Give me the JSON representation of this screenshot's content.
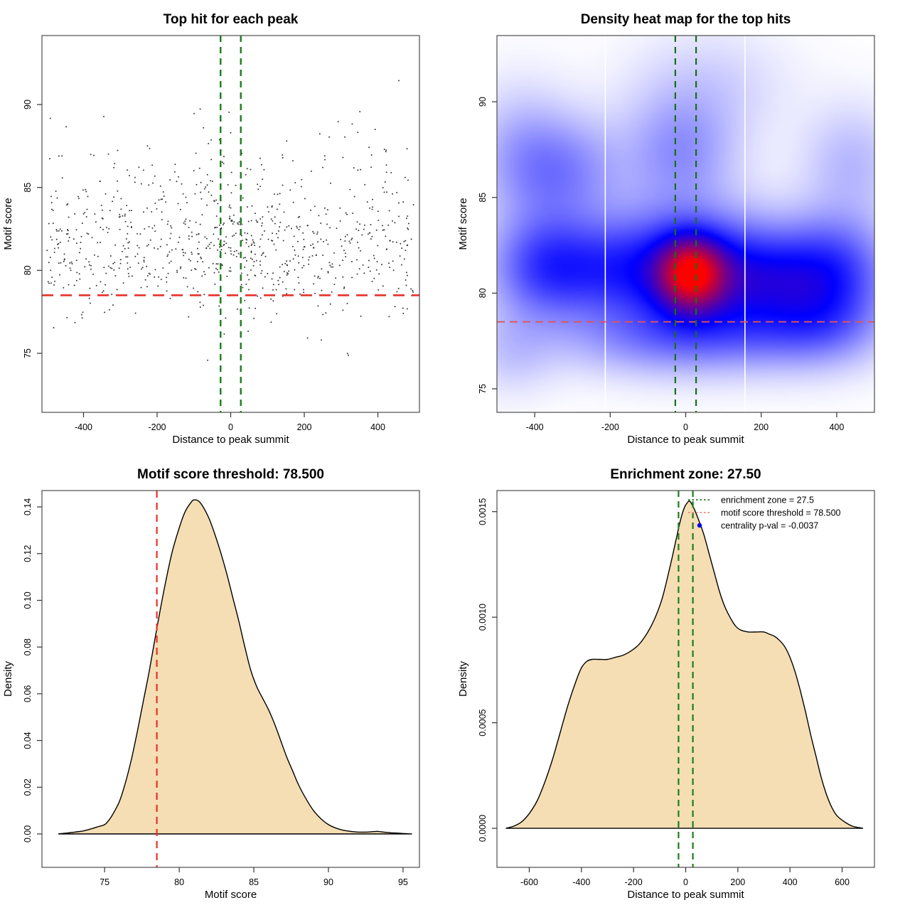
{
  "page": {
    "background": "#FFFFFF",
    "box_color": "#4d4d4d",
    "tick_color": "#333333"
  },
  "chart_data": [
    {
      "id": "p1",
      "type": "scatter",
      "title": "Top hit for each peak",
      "xlabel": "Distance to peak summit",
      "ylabel": "Motif score",
      "xlim": [
        -513,
        513
      ],
      "ylim": [
        71.44,
        94.16
      ],
      "xticks": [
        -400,
        -200,
        0,
        200,
        400
      ],
      "xtick_labels": [
        "-400",
        "-200",
        "0",
        "200",
        "400"
      ],
      "yticks": [
        75,
        80,
        85,
        90
      ],
      "ytick_labels": [
        "75",
        "80",
        "85",
        "90"
      ],
      "point_color": "#1c1c1c",
      "threshold_line": {
        "y": 78.5,
        "color": "#E8312A",
        "dash": "16,10",
        "width": 2.6
      },
      "zone_lines": {
        "x": [
          -27.5,
          27.5
        ],
        "color": "#1B7E1B",
        "dash": "9,7",
        "width": 2.4
      },
      "points_spec": {
        "seed": 987654321,
        "n_background": 730,
        "n_center": 145,
        "x_range": [
          -500,
          500
        ],
        "center_x_mean": 15,
        "center_x_sd": 95,
        "y_main_mean": 81.1,
        "y_main_sd": 2.0,
        "y_tail_mean": 84.3,
        "y_tail_sd": 2.6,
        "tail_fraction": 0.28,
        "y_range": [
          73.6,
          93.8
        ]
      }
    },
    {
      "id": "p2",
      "type": "heatmap",
      "title": "Density heat map for the top hits",
      "xlabel": "Distance to peak summit",
      "ylabel": "Motif score",
      "xlim": [
        -500,
        500
      ],
      "ylim": [
        73.77,
        93.46
      ],
      "xticks": [
        -400,
        -200,
        0,
        200,
        400
      ],
      "xtick_labels": [
        "-400",
        "-200",
        "0",
        "200",
        "400"
      ],
      "yticks": [
        75,
        80,
        85,
        90
      ],
      "ytick_labels": [
        "75",
        "80",
        "85",
        "90"
      ],
      "colormap": [
        "#FFFFFF",
        "#0000FF",
        "#FF0000"
      ],
      "white_gridlines_x": [
        -213,
        157
      ],
      "threshold_line": {
        "y": 78.5,
        "color": "#E05555",
        "dash": "11,7",
        "width": 1.8
      },
      "zone_lines": {
        "x": [
          -27.5,
          27.5
        ],
        "color": "#157015",
        "dash": "9,7",
        "width": 2.2
      },
      "kernels": [
        {
          "x": 15,
          "y": 81.0,
          "sx": 60,
          "sy": 1.3,
          "w": 1.0
        },
        {
          "x": 0,
          "y": 81.3,
          "sx": 150,
          "sy": 2.2,
          "w": 0.6
        },
        {
          "x": 230,
          "y": 80.8,
          "sx": 140,
          "sy": 1.7,
          "w": 0.52
        },
        {
          "x": 400,
          "y": 81.3,
          "sx": 100,
          "sy": 2.0,
          "w": 0.38
        },
        {
          "x": -370,
          "y": 81.4,
          "sx": 100,
          "sy": 1.9,
          "w": 0.52
        },
        {
          "x": -190,
          "y": 81.2,
          "sx": 110,
          "sy": 1.7,
          "w": 0.3
        },
        {
          "x": -330,
          "y": 86.4,
          "sx": 110,
          "sy": 1.9,
          "w": 0.3
        },
        {
          "x": -15,
          "y": 87.4,
          "sx": 100,
          "sy": 2.0,
          "w": 0.26
        },
        {
          "x": 140,
          "y": 77.9,
          "sx": 180,
          "sy": 1.4,
          "w": 0.26
        },
        {
          "x": 360,
          "y": 78.4,
          "sx": 110,
          "sy": 1.5,
          "w": 0.26
        },
        {
          "x": -120,
          "y": 77.6,
          "sx": 170,
          "sy": 1.3,
          "w": 0.18
        },
        {
          "x": -440,
          "y": 87.6,
          "sx": 90,
          "sy": 2.3,
          "w": 0.14
        },
        {
          "x": 60,
          "y": 90.8,
          "sx": 140,
          "sy": 2.0,
          "w": 0.1
        },
        {
          "x": 440,
          "y": 86.8,
          "sx": 90,
          "sy": 2.0,
          "w": 0.16
        },
        {
          "x": -460,
          "y": 77.0,
          "sx": 80,
          "sy": 1.5,
          "w": 0.12
        }
      ]
    },
    {
      "id": "p3",
      "type": "area",
      "title": "Motif score threshold: 78.500",
      "xlabel": "Motif score",
      "ylabel": "Density",
      "xlim": [
        70.8,
        96.1
      ],
      "ylim": [
        -0.0143,
        0.147
      ],
      "xticks": [
        75,
        80,
        85,
        90,
        95
      ],
      "xtick_labels": [
        "75",
        "80",
        "85",
        "90",
        "95"
      ],
      "yticks": [
        0.0,
        0.02,
        0.04,
        0.06,
        0.08,
        0.1,
        0.12,
        0.14
      ],
      "ytick_labels": [
        "0.00",
        "0.02",
        "0.04",
        "0.06",
        "0.08",
        "0.10",
        "0.12",
        "0.14"
      ],
      "fill": "#F5DEB3",
      "outline": "#000000",
      "threshold_line": {
        "x": 78.5,
        "color": "#E8312A",
        "dash": "10,7",
        "width": 2.2
      },
      "curve": [
        [
          71.9,
          0
        ],
        [
          72.5,
          0.0004
        ],
        [
          73,
          0.0008
        ],
        [
          73.5,
          0.0012
        ],
        [
          74,
          0.002
        ],
        [
          74.5,
          0.003
        ],
        [
          75,
          0.004
        ],
        [
          75.3,
          0.006
        ],
        [
          75.6,
          0.009
        ],
        [
          76,
          0.014
        ],
        [
          76.4,
          0.022
        ],
        [
          76.8,
          0.032
        ],
        [
          77.2,
          0.044
        ],
        [
          77.6,
          0.057
        ],
        [
          78,
          0.07
        ],
        [
          78.5,
          0.088
        ],
        [
          79,
          0.105
        ],
        [
          79.5,
          0.12
        ],
        [
          80,
          0.131
        ],
        [
          80.4,
          0.138
        ],
        [
          80.8,
          0.142
        ],
        [
          81,
          0.143
        ],
        [
          81.3,
          0.1425
        ],
        [
          81.6,
          0.14
        ],
        [
          82,
          0.135
        ],
        [
          82.4,
          0.128
        ],
        [
          82.8,
          0.12
        ],
        [
          83.2,
          0.111
        ],
        [
          83.6,
          0.101
        ],
        [
          84,
          0.091
        ],
        [
          84.4,
          0.08
        ],
        [
          84.8,
          0.07
        ],
        [
          85.2,
          0.063
        ],
        [
          85.6,
          0.058
        ],
        [
          86,
          0.053
        ],
        [
          86.4,
          0.047
        ],
        [
          86.8,
          0.04
        ],
        [
          87.2,
          0.033
        ],
        [
          87.6,
          0.027
        ],
        [
          88,
          0.021
        ],
        [
          88.5,
          0.015
        ],
        [
          89,
          0.01
        ],
        [
          89.5,
          0.0065
        ],
        [
          90,
          0.004
        ],
        [
          90.5,
          0.0025
        ],
        [
          91,
          0.0016
        ],
        [
          91.5,
          0.0011
        ],
        [
          92,
          0.0008
        ],
        [
          92.5,
          0.0008
        ],
        [
          93,
          0.001
        ],
        [
          93.3,
          0.0011
        ],
        [
          93.7,
          0.0008
        ],
        [
          94.2,
          0.0005
        ],
        [
          94.7,
          0.0003
        ],
        [
          95.3,
          0.0001
        ],
        [
          95.6,
          0
        ]
      ]
    },
    {
      "id": "p4",
      "type": "area",
      "title": "Enrichment zone: 27.50",
      "xlabel": "Distance to peak summit",
      "ylabel": "Density",
      "xlim": [
        -724,
        724
      ],
      "ylim": [
        -0.000185,
        0.0016
      ],
      "xticks": [
        -600,
        -400,
        -200,
        0,
        200,
        400,
        600
      ],
      "xtick_labels": [
        "-600",
        "-400",
        "-200",
        "0",
        "200",
        "400",
        "600"
      ],
      "yticks": [
        0.0,
        0.0005,
        0.001,
        0.0015
      ],
      "ytick_labels": [
        "0.0000",
        "0.0005",
        "0.0010",
        "0.0015"
      ],
      "fill": "#F5DEB3",
      "outline": "#000000",
      "zone_lines": {
        "x": [
          -27.5,
          27.5
        ],
        "color": "#1B7E1B",
        "dash": "9,6",
        "width": 2.2
      },
      "legend": {
        "items": [
          {
            "swatch": "dotted-line",
            "color": "#1B7E1B",
            "label": "enrichment zone = 27.5"
          },
          {
            "swatch": "dotted-line",
            "color": "#F08080",
            "label": "motif score threshold = 78.500"
          },
          {
            "swatch": "dot",
            "color": "#0000EE",
            "label": "centrality p-val = -0.0037"
          }
        ]
      },
      "curve": [
        [
          -690,
          0
        ],
        [
          -660,
          1e-05
        ],
        [
          -630,
          3e-05
        ],
        [
          -600,
          7e-05
        ],
        [
          -570,
          0.00013
        ],
        [
          -540,
          0.00022
        ],
        [
          -510,
          0.00033
        ],
        [
          -480,
          0.00046
        ],
        [
          -450,
          0.00059
        ],
        [
          -420,
          0.0007
        ],
        [
          -400,
          0.00076
        ],
        [
          -380,
          0.00079
        ],
        [
          -360,
          0.0008
        ],
        [
          -330,
          0.0008
        ],
        [
          -300,
          0.0008
        ],
        [
          -270,
          0.00081
        ],
        [
          -240,
          0.00082
        ],
        [
          -210,
          0.00084
        ],
        [
          -180,
          0.00087
        ],
        [
          -150,
          0.00092
        ],
        [
          -120,
          0.00099
        ],
        [
          -90,
          0.00109
        ],
        [
          -60,
          0.00124
        ],
        [
          -40,
          0.00135
        ],
        [
          -20,
          0.00146
        ],
        [
          -5,
          0.00152
        ],
        [
          5,
          0.00154
        ],
        [
          15,
          0.00155
        ],
        [
          30,
          0.00152
        ],
        [
          50,
          0.00146
        ],
        [
          70,
          0.00139
        ],
        [
          90,
          0.0013
        ],
        [
          110,
          0.00121
        ],
        [
          130,
          0.00112
        ],
        [
          150,
          0.00105
        ],
        [
          170,
          0.001
        ],
        [
          190,
          0.00096
        ],
        [
          210,
          0.00094
        ],
        [
          240,
          0.00093
        ],
        [
          270,
          0.00093
        ],
        [
          300,
          0.00093
        ],
        [
          320,
          0.00092
        ],
        [
          340,
          0.00091
        ],
        [
          360,
          0.00089
        ],
        [
          380,
          0.00086
        ],
        [
          400,
          0.00081
        ],
        [
          420,
          0.00074
        ],
        [
          440,
          0.00065
        ],
        [
          460,
          0.00055
        ],
        [
          480,
          0.00044
        ],
        [
          500,
          0.00034
        ],
        [
          520,
          0.00024
        ],
        [
          540,
          0.00016
        ],
        [
          560,
          0.0001
        ],
        [
          580,
          6e-05
        ],
        [
          610,
          3e-05
        ],
        [
          640,
          1e-05
        ],
        [
          680,
          0
        ]
      ]
    }
  ]
}
